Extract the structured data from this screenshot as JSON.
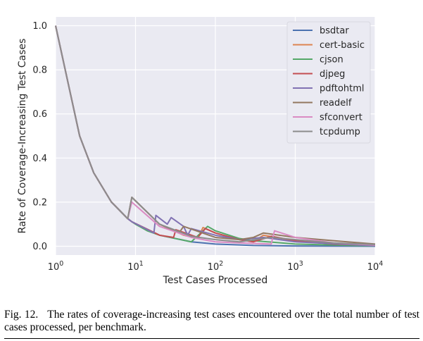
{
  "caption": {
    "label": "Fig. 12.",
    "text": "The rates of coverage-increasing test cases encountered over the total number of test cases processed, per benchmark."
  },
  "chart_data": {
    "type": "line",
    "xlabel": "Test Cases Processed",
    "ylabel": "Rate of Coverage-Increasing Test Cases",
    "xscale": "log",
    "xlim": [
      1,
      10000
    ],
    "ylim": [
      -0.04,
      1.04
    ],
    "xticks": [
      {
        "value": 1,
        "base": "10",
        "exp": "0"
      },
      {
        "value": 10,
        "base": "10",
        "exp": "1"
      },
      {
        "value": 100,
        "base": "10",
        "exp": "2"
      },
      {
        "value": 1000,
        "base": "10",
        "exp": "3"
      },
      {
        "value": 10000,
        "base": "10",
        "exp": "4"
      }
    ],
    "yticks": [
      {
        "value": 0.0,
        "label": "0.0"
      },
      {
        "value": 0.2,
        "label": "0.2"
      },
      {
        "value": 0.4,
        "label": "0.4"
      },
      {
        "value": 0.6,
        "label": "0.6"
      },
      {
        "value": 0.8,
        "label": "0.8"
      },
      {
        "value": 1.0,
        "label": "1.0"
      }
    ],
    "grid": true,
    "background": "#eaeaf2",
    "legend_position": "top-right",
    "series": [
      {
        "name": "bsdtar",
        "color": "#4c72b0",
        "points": [
          [
            1,
            1
          ],
          [
            2,
            0.5
          ],
          [
            3,
            0.333
          ],
          [
            5,
            0.2
          ],
          [
            8,
            0.125
          ],
          [
            9,
            0.111
          ],
          [
            20,
            0.05
          ],
          [
            50,
            0.02
          ],
          [
            100,
            0.01
          ],
          [
            300,
            0.0035
          ],
          [
            1000,
            0.001
          ],
          [
            10000,
            0.0001
          ]
        ]
      },
      {
        "name": "cert-basic",
        "color": "#dd8452",
        "points": [
          [
            1,
            1
          ],
          [
            2,
            0.5
          ],
          [
            3,
            0.333
          ],
          [
            5,
            0.2
          ],
          [
            8,
            0.125
          ],
          [
            9,
            0.222
          ],
          [
            20,
            0.1
          ],
          [
            40,
            0.05
          ],
          [
            60,
            0.035
          ],
          [
            70,
            0.085
          ],
          [
            100,
            0.06
          ],
          [
            200,
            0.03
          ],
          [
            300,
            0.02
          ],
          [
            400,
            0.05
          ],
          [
            800,
            0.03
          ],
          [
            2000,
            0.015
          ],
          [
            10000,
            0.003
          ]
        ]
      },
      {
        "name": "cjson",
        "color": "#55a868",
        "points": [
          [
            1,
            1
          ],
          [
            2,
            0.5
          ],
          [
            3,
            0.333
          ],
          [
            5,
            0.2
          ],
          [
            8,
            0.125
          ],
          [
            9,
            0.111
          ],
          [
            10,
            0.1
          ],
          [
            13,
            0.077
          ],
          [
            14,
            0.07
          ],
          [
            20,
            0.05
          ],
          [
            50,
            0.02
          ],
          [
            80,
            0.09
          ],
          [
            100,
            0.07
          ],
          [
            200,
            0.035
          ],
          [
            300,
            0.025
          ],
          [
            1000,
            0.01
          ],
          [
            10000,
            0.001
          ]
        ]
      },
      {
        "name": "djpeg",
        "color": "#c44e52",
        "points": [
          [
            1,
            1
          ],
          [
            2,
            0.5
          ],
          [
            3,
            0.333
          ],
          [
            5,
            0.2
          ],
          [
            8,
            0.125
          ],
          [
            9,
            0.111
          ],
          [
            20,
            0.05
          ],
          [
            30,
            0.04
          ],
          [
            32,
            0.075
          ],
          [
            60,
            0.04
          ],
          [
            75,
            0.08
          ],
          [
            100,
            0.06
          ],
          [
            200,
            0.03
          ],
          [
            300,
            0.02
          ],
          [
            500,
            0.045
          ],
          [
            1000,
            0.025
          ],
          [
            3000,
            0.01
          ],
          [
            10000,
            0.004
          ]
        ]
      },
      {
        "name": "pdftohtml",
        "color": "#8172b3",
        "points": [
          [
            1,
            1
          ],
          [
            2,
            0.5
          ],
          [
            3,
            0.333
          ],
          [
            5,
            0.2
          ],
          [
            8,
            0.125
          ],
          [
            9,
            0.111
          ],
          [
            17,
            0.06
          ],
          [
            18,
            0.14
          ],
          [
            25,
            0.1
          ],
          [
            28,
            0.13
          ],
          [
            40,
            0.09
          ],
          [
            45,
            0.05
          ],
          [
            50,
            0.08
          ],
          [
            100,
            0.05
          ],
          [
            200,
            0.03
          ],
          [
            400,
            0.04
          ],
          [
            1000,
            0.02
          ],
          [
            10000,
            0.002
          ]
        ]
      },
      {
        "name": "readelf",
        "color": "#937860",
        "points": [
          [
            1,
            1
          ],
          [
            2,
            0.5
          ],
          [
            3,
            0.333
          ],
          [
            5,
            0.2
          ],
          [
            8,
            0.125
          ],
          [
            9,
            0.222
          ],
          [
            20,
            0.1
          ],
          [
            35,
            0.06
          ],
          [
            40,
            0.09
          ],
          [
            100,
            0.04
          ],
          [
            200,
            0.03
          ],
          [
            300,
            0.04
          ],
          [
            400,
            0.06
          ],
          [
            1000,
            0.04
          ],
          [
            3000,
            0.025
          ],
          [
            10000,
            0.01
          ]
        ]
      },
      {
        "name": "sfconvert",
        "color": "#da8bc3",
        "points": [
          [
            1,
            1
          ],
          [
            2,
            0.5
          ],
          [
            3,
            0.333
          ],
          [
            5,
            0.2
          ],
          [
            8,
            0.125
          ],
          [
            9,
            0.2
          ],
          [
            20,
            0.09
          ],
          [
            50,
            0.04
          ],
          [
            100,
            0.02
          ],
          [
            200,
            0.015
          ],
          [
            500,
            0.01
          ],
          [
            550,
            0.07
          ],
          [
            1000,
            0.04
          ],
          [
            3000,
            0.015
          ],
          [
            10000,
            0.005
          ]
        ]
      },
      {
        "name": "tcpdump",
        "color": "#8c8c8c",
        "points": [
          [
            1,
            1
          ],
          [
            2,
            0.5
          ],
          [
            3,
            0.333
          ],
          [
            5,
            0.2
          ],
          [
            8,
            0.125
          ],
          [
            9,
            0.222
          ],
          [
            20,
            0.1
          ],
          [
            50,
            0.045
          ],
          [
            100,
            0.03
          ],
          [
            200,
            0.02
          ],
          [
            500,
            0.04
          ],
          [
            1000,
            0.03
          ],
          [
            3000,
            0.015
          ],
          [
            10000,
            0.008
          ]
        ]
      }
    ]
  }
}
